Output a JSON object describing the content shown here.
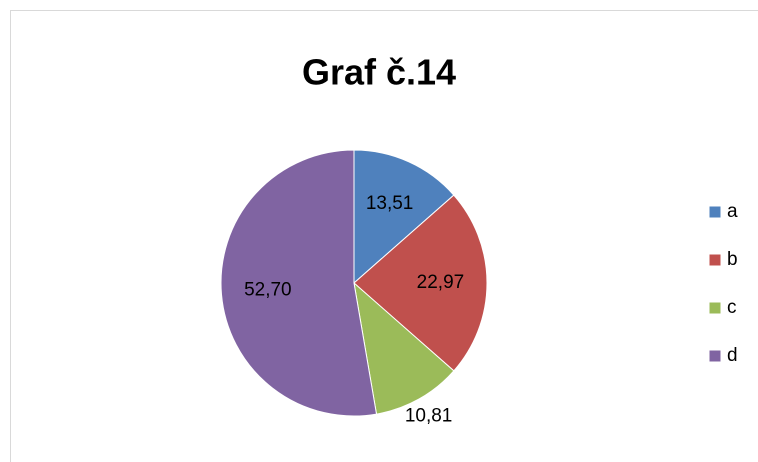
{
  "chart_data": {
    "type": "pie",
    "title": "Graf č.14",
    "categories": [
      "a",
      "b",
      "c",
      "d"
    ],
    "values": [
      13.51,
      22.97,
      10.81,
      52.7
    ],
    "value_labels": [
      "13,51",
      "22,97",
      "10,81",
      "52,70"
    ],
    "colors": [
      "#4f81bd",
      "#c0504d",
      "#9bbb59",
      "#8064a2"
    ],
    "legend": "right"
  }
}
